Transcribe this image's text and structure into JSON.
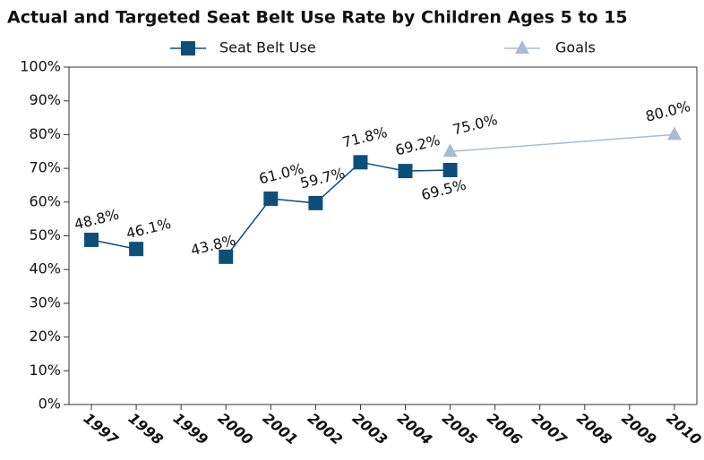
{
  "chart_data": {
    "type": "line",
    "title": "Actual and Targeted Seat Belt Use Rate by Children Ages 5 to 15",
    "xlim": [
      1996.5,
      2010.5
    ],
    "xticks": [
      1997,
      1998,
      1999,
      2000,
      2001,
      2002,
      2003,
      2004,
      2005,
      2006,
      2007,
      2008,
      2009,
      2010
    ],
    "ylim": [
      0,
      100
    ],
    "yticks": [
      {
        "value": 0,
        "label": "0%"
      },
      {
        "value": 10,
        "label": "10%"
      },
      {
        "value": 20,
        "label": "20%"
      },
      {
        "value": 30,
        "label": "30%"
      },
      {
        "value": 40,
        "label": "40%"
      },
      {
        "value": 50,
        "label": "50%"
      },
      {
        "value": 60,
        "label": "60%"
      },
      {
        "value": 70,
        "label": "70%"
      },
      {
        "value": 80,
        "label": "80%"
      },
      {
        "value": 90,
        "label": "90%"
      },
      {
        "value": 100,
        "label": "100%"
      }
    ],
    "legend": "top",
    "series": [
      {
        "name": "Seat Belt Use",
        "color": "#0d4f79",
        "marker": "square",
        "x": [
          1997,
          1998,
          1999,
          2000,
          2001,
          2002,
          2003,
          2004,
          2005
        ],
        "values": [
          48.8,
          46.1,
          null,
          43.8,
          61.0,
          59.7,
          71.8,
          69.2,
          69.5
        ],
        "value_labels": [
          "48.8%",
          "46.1%",
          null,
          "43.8%",
          "61.0%",
          "59.7%",
          "71.8%",
          "69.2%",
          "69.5%"
        ]
      },
      {
        "name": "Goals",
        "color": "#a6bcd2",
        "marker": "triangle",
        "x": [
          2005,
          2010
        ],
        "values": [
          75.0,
          80.0
        ],
        "value_labels": [
          "75.0%",
          "80.0%"
        ]
      }
    ]
  }
}
